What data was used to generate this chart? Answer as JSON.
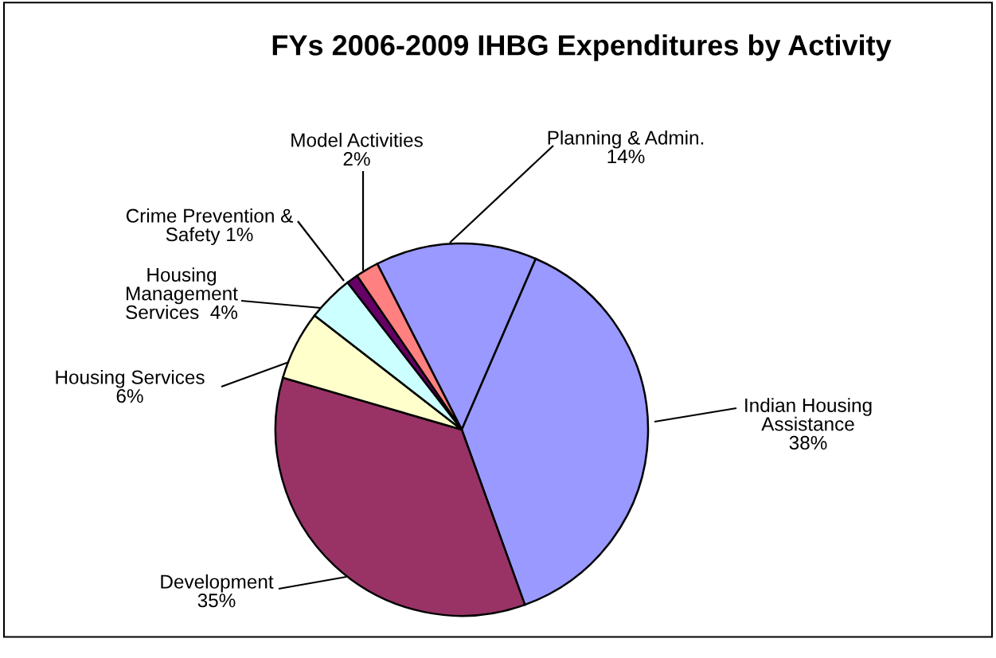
{
  "chart_data": {
    "type": "pie",
    "title": "FYs 2006-2009 IHBG Expenditures by Activity",
    "categories": [
      "Planning & Admin.",
      "Indian Housing\nAssistance",
      "Development",
      "Housing Services",
      "Housing\nManagement\nServices",
      "Crime Prevention &\nSafety",
      "Model Activities"
    ],
    "values": [
      14,
      38,
      35,
      6,
      4,
      1,
      2
    ],
    "value_labels": [
      "14%",
      "38%",
      "35%",
      "6%",
      "4%",
      "1%",
      "2%"
    ],
    "colors": [
      "#9999ff",
      "#9999ff",
      "#993366",
      "#ffffcc",
      "#ccffff",
      "#660066",
      "#ff8080"
    ],
    "legend": false
  }
}
